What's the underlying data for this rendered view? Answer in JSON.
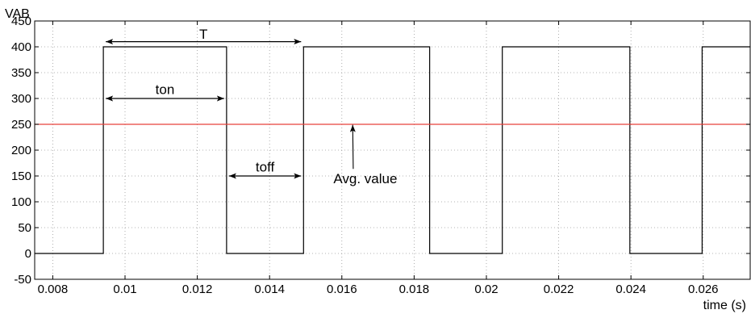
{
  "chart_data": {
    "type": "line",
    "title": "",
    "ylabel": "VAB",
    "xlabel": "time (s)",
    "xlim": [
      0.0075,
      0.0273
    ],
    "ylim": [
      -50,
      450
    ],
    "x_ticks": [
      0.008,
      0.01,
      0.012,
      0.014,
      0.016,
      0.018,
      0.02,
      0.022,
      0.024,
      0.026
    ],
    "x_tick_labels": [
      "0.008",
      "0.01",
      "0.012",
      "0.014",
      "0.016",
      "0.018",
      "0.02",
      "0.022",
      "0.024",
      "0.026"
    ],
    "y_ticks": [
      -50,
      0,
      50,
      100,
      150,
      200,
      250,
      300,
      350,
      400,
      450
    ],
    "y_tick_labels": [
      "-50",
      "0",
      "50",
      "100",
      "150",
      "200",
      "250",
      "300",
      "350",
      "400",
      "450"
    ],
    "grid": true,
    "series": [
      {
        "color": "#000000",
        "x": [
          0.0075,
          0.0094,
          0.0094,
          0.01281,
          0.01281,
          0.01494,
          0.01494,
          0.01843,
          0.01843,
          0.02044,
          0.02044,
          0.02397,
          0.02397,
          0.02597,
          0.02597,
          0.0273
        ],
        "y": [
          0,
          0,
          400,
          400,
          0,
          0,
          400,
          400,
          0,
          0,
          400,
          400,
          0,
          0,
          400,
          400
        ]
      },
      {
        "color": "#e8403a",
        "x": [
          0.0075,
          0.0273
        ],
        "y": [
          250,
          250
        ]
      }
    ],
    "annotations": [
      {
        "text": "T",
        "arrow": "double",
        "x1": 0.0094,
        "x2": 0.01494,
        "y": 410,
        "label_y": 425
      },
      {
        "text": "ton",
        "arrow": "double",
        "x1": 0.0094,
        "x2": 0.01281,
        "y": 300,
        "label_y": 318
      },
      {
        "text": "toff",
        "arrow": "double",
        "x1": 0.01281,
        "x2": 0.01494,
        "y": 150,
        "label_y": 168
      },
      {
        "text": "Avg. value",
        "arrow": "single",
        "x_text": 0.01665,
        "y_text": 145,
        "x_tip": 0.0163,
        "y_tip": 249
      }
    ]
  }
}
